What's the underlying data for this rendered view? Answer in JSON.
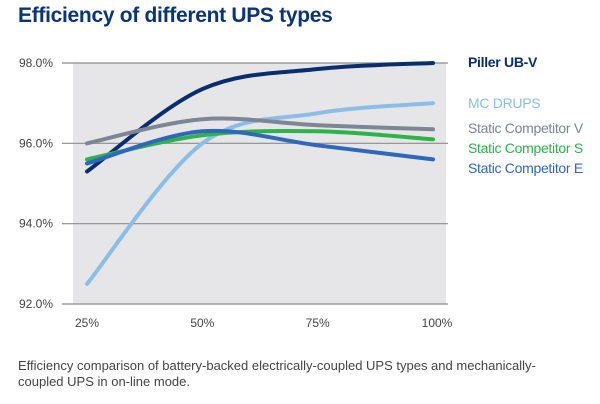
{
  "title": "Efficiency of different UPS types",
  "caption": "Efficiency comparison of battery-backed electrically-coupled UPS types and mechanically-coupled UPS in on-line mode.",
  "chart_data": {
    "type": "line",
    "categories": [
      "25%",
      "50%",
      "75%",
      "100%"
    ],
    "x": [
      25,
      50,
      75,
      100
    ],
    "ylim": [
      92,
      98
    ],
    "yticks": [
      92,
      94,
      96,
      98
    ],
    "ytick_labels": [
      "92.0%",
      "94.0%",
      "96.0%",
      "98.0%"
    ],
    "grid": true,
    "legend": "right, labels at line ends",
    "series": [
      {
        "name": "Piller UB-V",
        "color": "#0a2d6e",
        "values": [
          95.3,
          97.35,
          97.85,
          98.0
        ]
      },
      {
        "name": "MC DRUPS",
        "color": "#8cbde6",
        "values": [
          92.5,
          96.0,
          96.75,
          97.0
        ]
      },
      {
        "name": "Static Competitor V",
        "color": "#7d8694",
        "values": [
          96.0,
          96.6,
          96.45,
          96.35
        ]
      },
      {
        "name": "Static Competitor S",
        "color": "#2eb24a",
        "values": [
          95.6,
          96.2,
          96.3,
          96.1
        ]
      },
      {
        "name": "Static Competitor E",
        "color": "#2f68bb",
        "values": [
          95.5,
          96.3,
          95.95,
          95.6
        ]
      }
    ]
  }
}
